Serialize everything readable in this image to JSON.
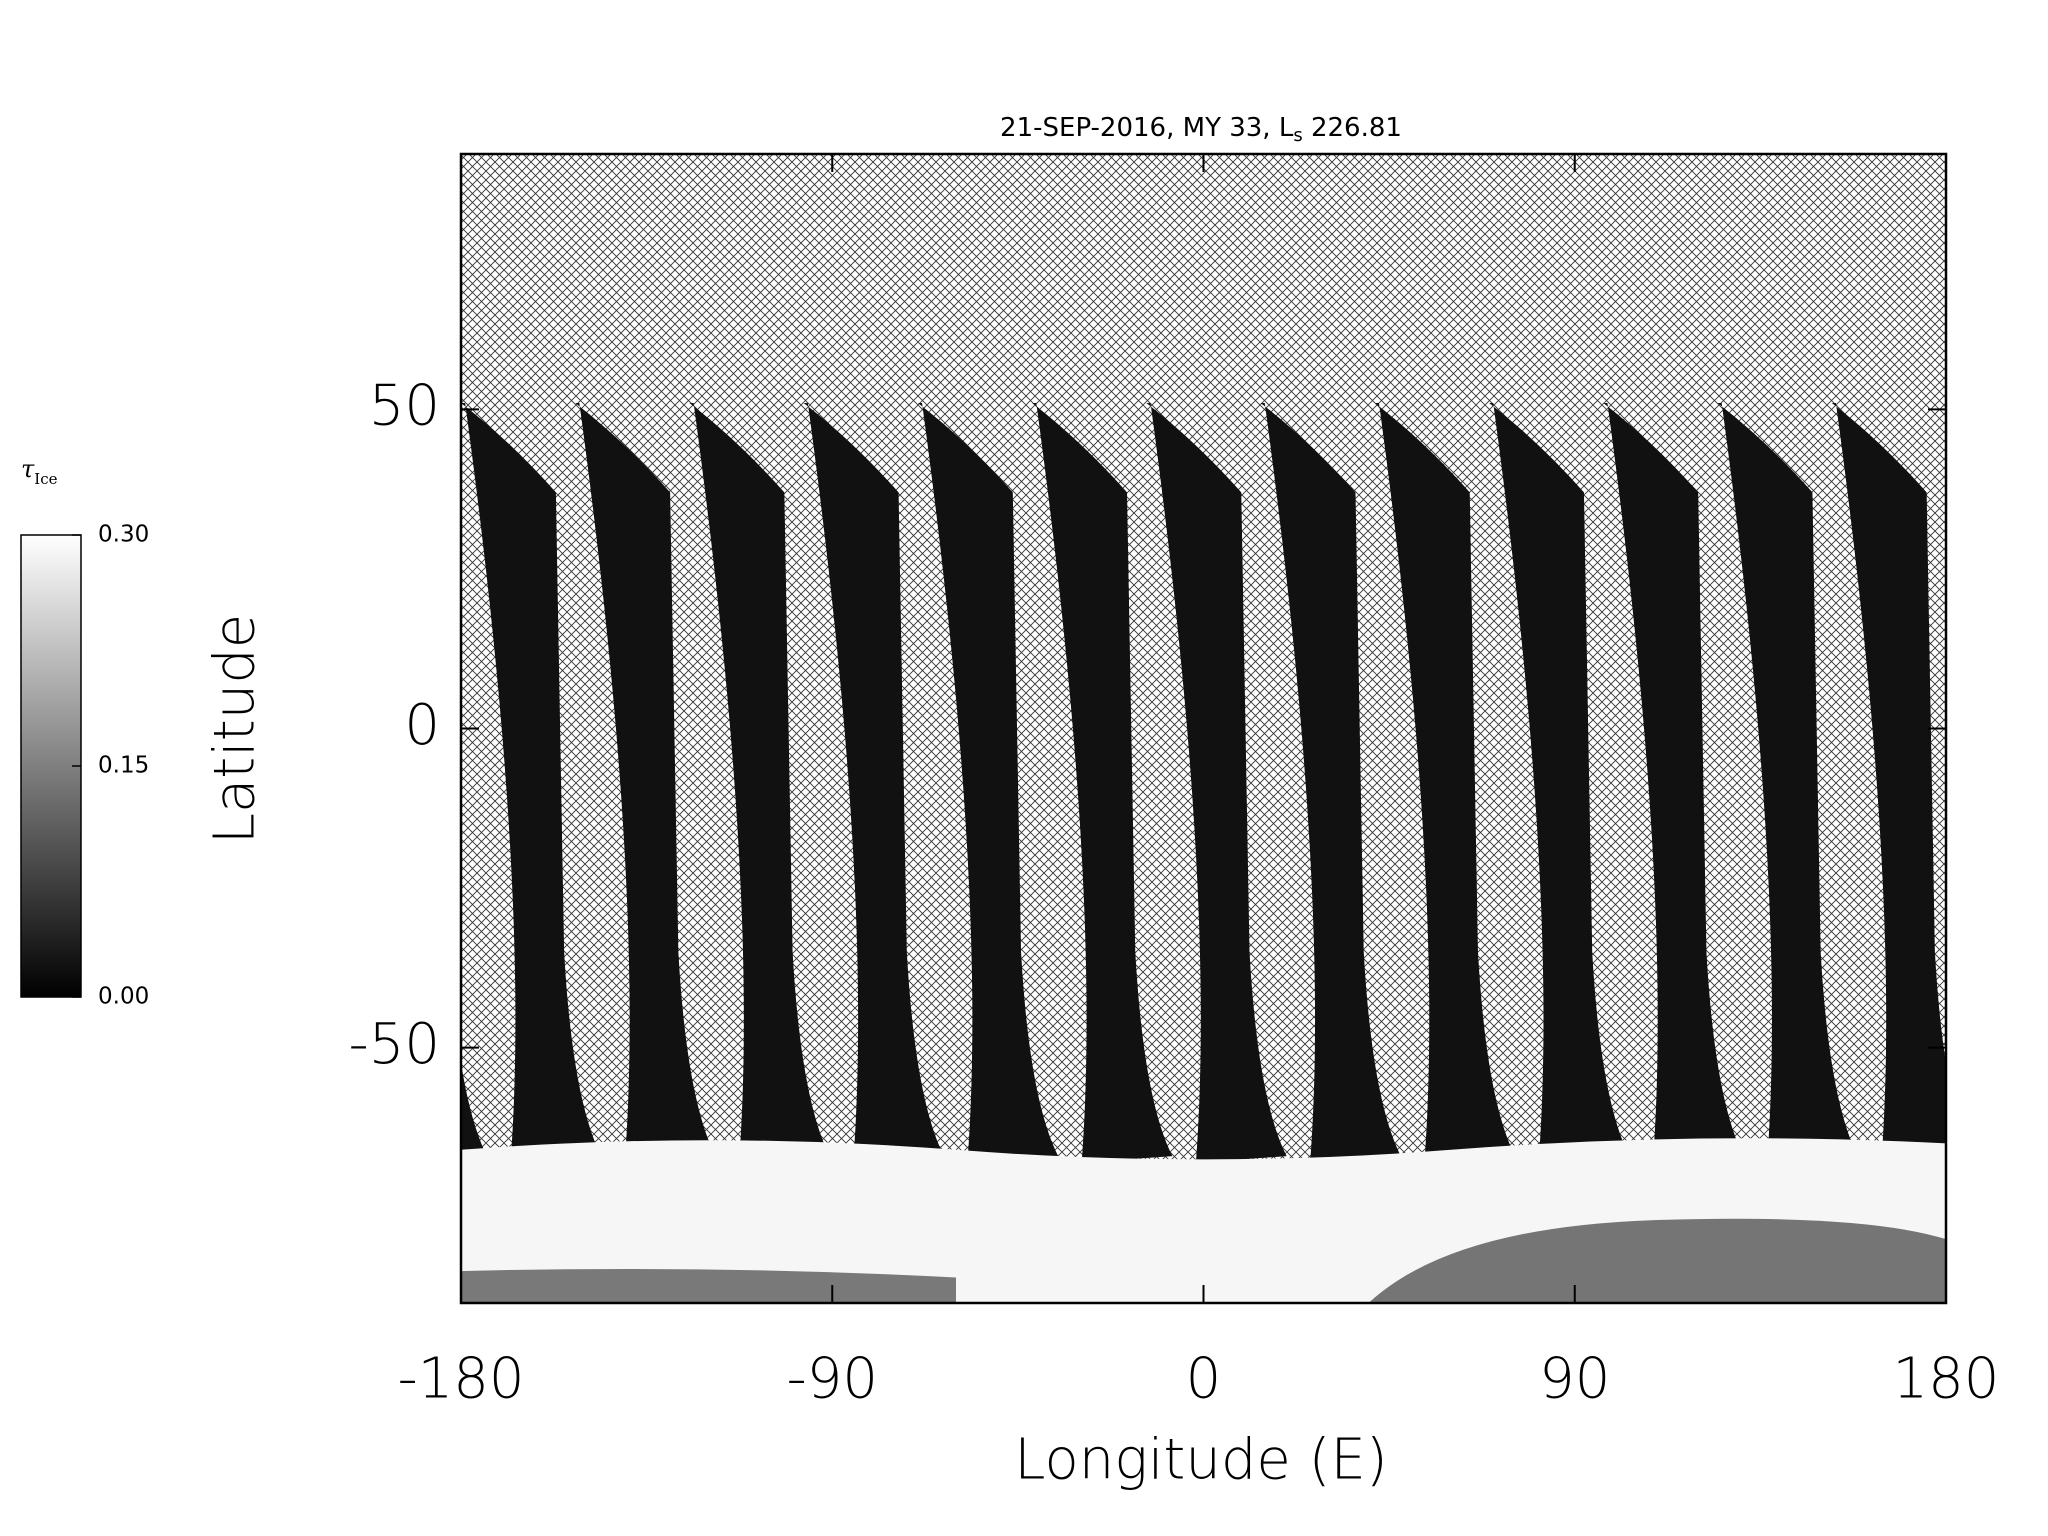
{
  "chart_data": {
    "type": "map",
    "title": [
      "21-SEP-2016, MY 33,  L",
      "s",
      " 226.81"
    ],
    "x_label": "Longitude (E)",
    "y_label": "Latitude",
    "xlim": [
      -180,
      180
    ],
    "xticks": [
      -180,
      -90,
      0,
      90,
      180
    ],
    "ylim": [
      -90,
      90
    ],
    "yticks": [
      -50,
      0,
      50
    ],
    "colorbar": {
      "label": [
        "τ",
        "Ice"
      ],
      "colormap": [
        "#000000",
        "#ffffff"
      ],
      "clim": [
        0,
        0.3
      ],
      "ticks": [
        {
          "value": 0,
          "label": "0.00"
        },
        {
          "value": 0.15,
          "label": "0.15"
        },
        {
          "value": 0.3,
          "label": "0.30"
        }
      ]
    }
  }
}
